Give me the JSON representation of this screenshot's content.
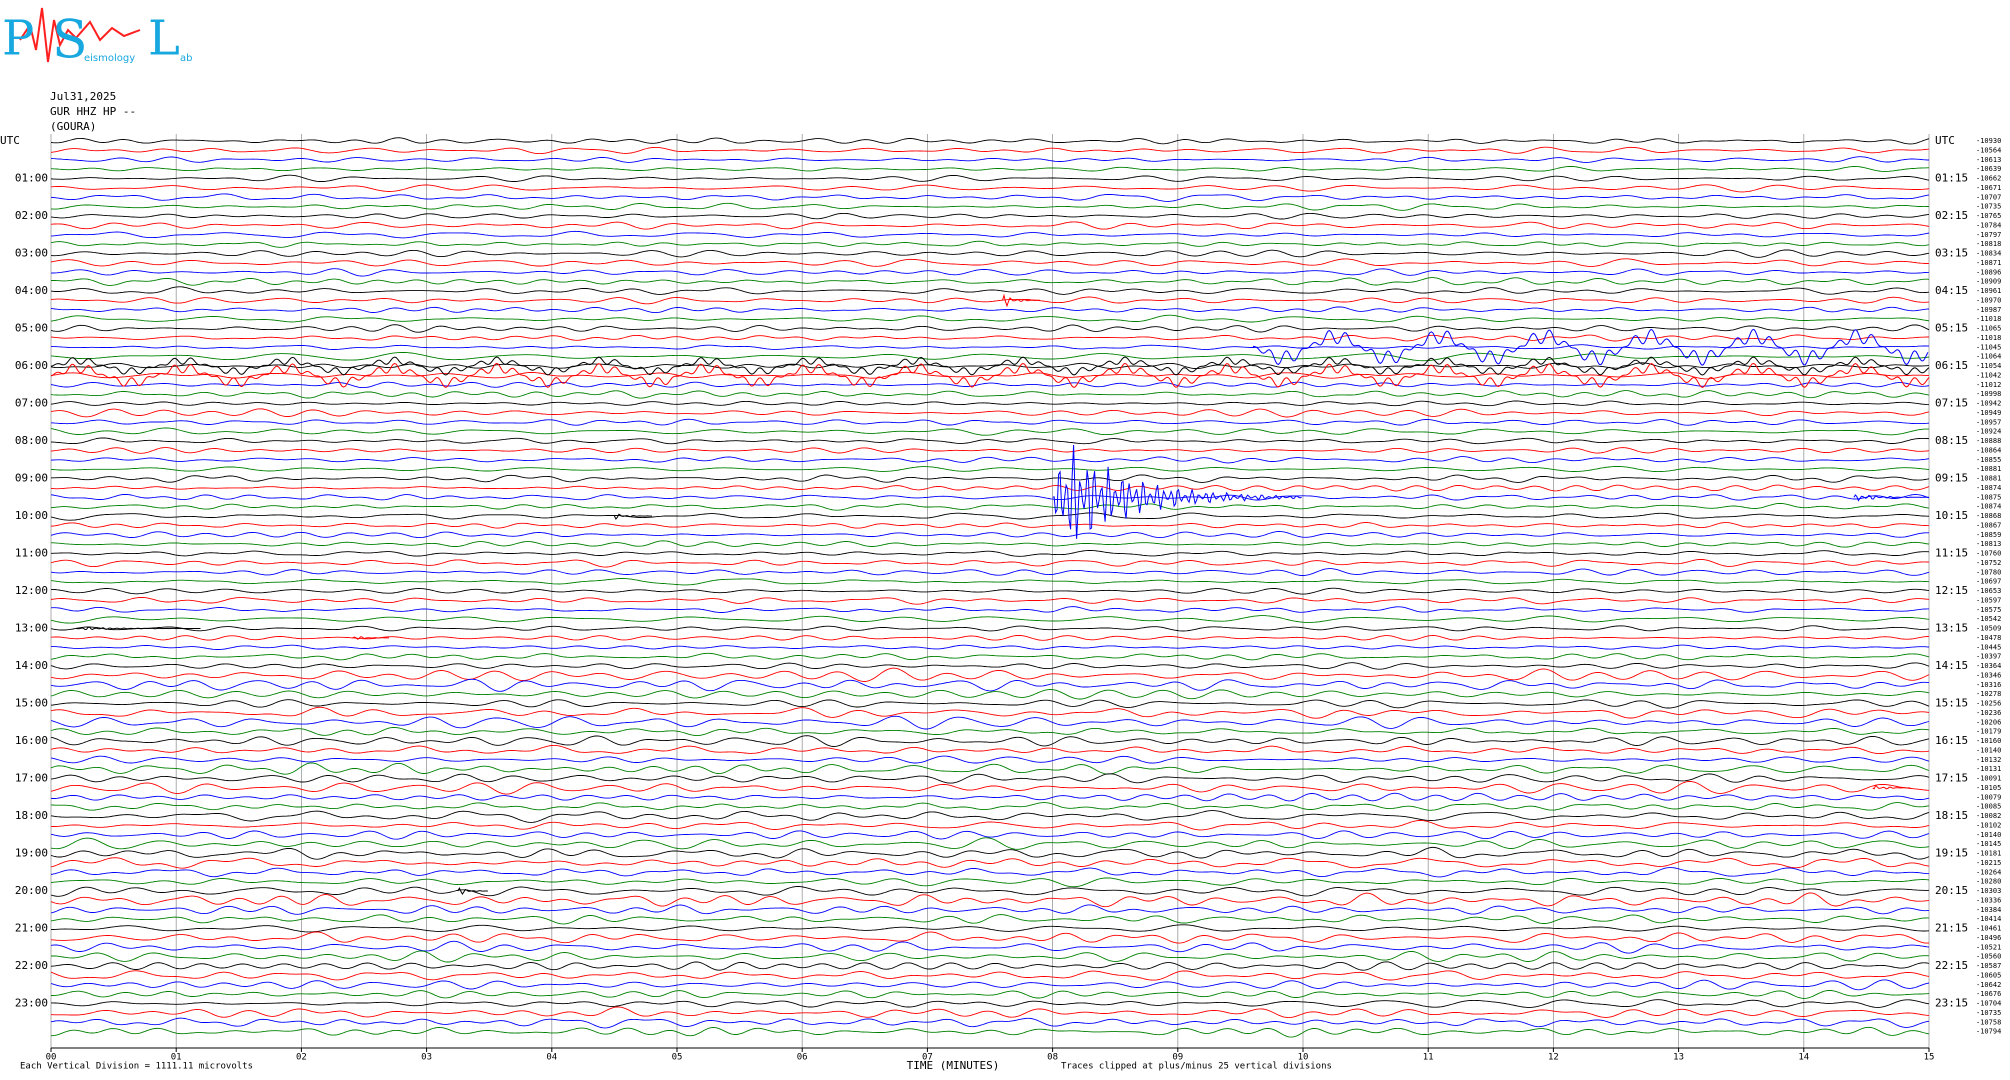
{
  "chart_data": {
    "type": "helicorder",
    "logo": {
      "p": "P",
      "s": "S",
      "l": "L",
      "s_rest": "eismology",
      "l_rest": "ab"
    },
    "date": "Jul31,2025",
    "channel": "GUR HHZ HP --",
    "station": "(GOURA)",
    "left_labels": [
      "UTC",
      "01:00",
      "02:00",
      "03:00",
      "04:00",
      "05:00",
      "06:00",
      "07:00",
      "08:00",
      "09:00",
      "10:00",
      "11:00",
      "12:00",
      "13:00",
      "14:00",
      "15:00",
      "16:00",
      "17:00",
      "18:00",
      "19:00",
      "20:00",
      "21:00",
      "22:00",
      "23:00"
    ],
    "right_labels": [
      "UTC",
      "01:15",
      "02:15",
      "03:15",
      "04:15",
      "05:15",
      "06:15",
      "07:15",
      "08:15",
      "09:15",
      "10:15",
      "11:15",
      "12:15",
      "13:15",
      "14:15",
      "15:15",
      "16:15",
      "17:15",
      "18:15",
      "19:15",
      "20:15",
      "21:15",
      "22:15",
      "23:15"
    ],
    "trace_offsets": [
      "-10930",
      "-10564",
      "-10613",
      "-10639",
      "-10662",
      "-10671",
      "-10707",
      "-10735",
      "-10765",
      "-10784",
      "-10797",
      "-10818",
      "-10834",
      "-10871",
      "-10896",
      "-10909",
      "-10961",
      "-10970",
      "-10987",
      "-11018",
      "-11065",
      "-11018",
      "-11045",
      "-11064",
      "-11054",
      "-11042",
      "-11012",
      "-10998",
      "-10942",
      "-10949",
      "-10957",
      "-10924",
      "-10888",
      "-10864",
      "-10855",
      "-10881",
      "-10881",
      "-10874",
      "-10875",
      "-10874",
      "-10868",
      "-10867",
      "-10859",
      "-10813",
      "-10760",
      "-10752",
      "-10780",
      "-10697",
      "-10653",
      "-10597",
      "-10575",
      "-10542",
      "-10509",
      "-10478",
      "-10445",
      "-10397",
      "-10364",
      "-10346",
      "-10316",
      "-10278",
      "-10256",
      "-10236",
      "-10206",
      "-10179",
      "-10160",
      "-10140",
      "-10132",
      "-10131",
      "-10091",
      "-10105",
      "-10079",
      "-10085",
      "-10082",
      "-10102",
      "-10140",
      "-10145",
      "-10181",
      "-10215",
      "-10264",
      "-10280",
      "-10303",
      "-10336",
      "-10384",
      "-10414",
      "-10461",
      "-10496",
      "-10521",
      "-10560",
      "-10587",
      "-10605",
      "-10642",
      "-10676",
      "-10704",
      "-10735",
      "-10758",
      "-10794"
    ],
    "trace_colors": [
      "#000000",
      "#ff0000",
      "#0000ff",
      "#008000"
    ],
    "xlim": [
      0,
      15
    ],
    "xticks": [
      {
        "value": 0,
        "label": "00"
      },
      {
        "value": 1,
        "label": "01"
      },
      {
        "value": 2,
        "label": "02"
      },
      {
        "value": 3,
        "label": "03"
      },
      {
        "value": 4,
        "label": "04"
      },
      {
        "value": 5,
        "label": "05"
      },
      {
        "value": 6,
        "label": "06"
      },
      {
        "value": 7,
        "label": "07"
      },
      {
        "value": 8,
        "label": "08"
      },
      {
        "value": 9,
        "label": "09"
      },
      {
        "value": 10,
        "label": "10"
      },
      {
        "value": 11,
        "label": "11"
      },
      {
        "value": 12,
        "label": "12"
      },
      {
        "value": 13,
        "label": "13"
      },
      {
        "value": 14,
        "label": "14"
      },
      {
        "value": 15,
        "label": "15"
      }
    ],
    "grid": true,
    "x_label": "TIME (MINUTES)",
    "scale_note": "Each Vertical Division = 1111.11 microvolts",
    "clip_note": "Traces clipped at plus/minus 25 vertical divisions",
    "events": [
      {
        "trace": 38,
        "minute": 8.0,
        "duration": 2.0,
        "amplitude": 25
      },
      {
        "trace": 38,
        "minute": 14.4,
        "duration": 0.6,
        "amplitude": 2
      },
      {
        "trace": 22,
        "minute": 9.6,
        "duration": 5.4,
        "amplitude": 6
      },
      {
        "trace": 24,
        "minute": 0.0,
        "duration": 15,
        "amplitude": 3
      },
      {
        "trace": 25,
        "minute": 0.0,
        "duration": 15,
        "amplitude": 4
      },
      {
        "trace": 17,
        "minute": 7.6,
        "duration": 0.3,
        "amplitude": 3
      },
      {
        "trace": 40,
        "minute": 4.5,
        "duration": 0.3,
        "amplitude": 1.5
      },
      {
        "trace": 52,
        "minute": 0.2,
        "duration": 1.0,
        "amplitude": 0.8
      },
      {
        "trace": 53,
        "minute": 2.4,
        "duration": 0.3,
        "amplitude": 1.2
      },
      {
        "trace": 80,
        "minute": 3.25,
        "duration": 0.25,
        "amplitude": 1.8
      },
      {
        "trace": 69,
        "minute": 14.55,
        "duration": 0.3,
        "amplitude": 1.8
      }
    ]
  }
}
